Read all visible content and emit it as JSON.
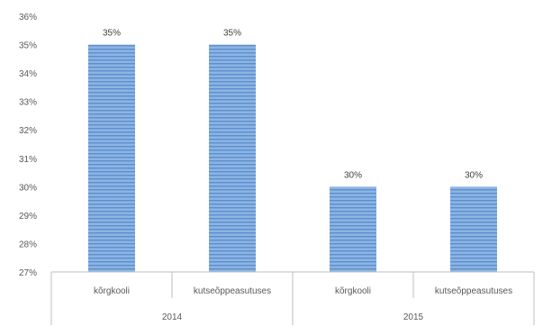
{
  "chart_data": {
    "type": "bar",
    "title": "",
    "xlabel": "",
    "ylabel": "",
    "ylim": [
      27,
      36
    ],
    "y_ticks": [
      "27%",
      "28%",
      "29%",
      "30%",
      "31%",
      "32%",
      "33%",
      "34%",
      "35%",
      "36%"
    ],
    "y_tick_values": [
      27,
      28,
      29,
      30,
      31,
      32,
      33,
      34,
      35,
      36
    ],
    "grid": false,
    "legend": "none",
    "groups": [
      {
        "label": "2014",
        "categories": [
          "kõrgkooli",
          "kutseõppeasutuses"
        ],
        "values": [
          35,
          35
        ],
        "value_labels": [
          "35%",
          "35%"
        ]
      },
      {
        "label": "2015",
        "categories": [
          "kõrgkooli",
          "kutseõppeasutuses"
        ],
        "values": [
          30,
          30
        ],
        "value_labels": [
          "30%",
          "30%"
        ]
      }
    ],
    "bar_color": "#8DB4E2",
    "bar_stripe_color": "#5B8FD0"
  }
}
